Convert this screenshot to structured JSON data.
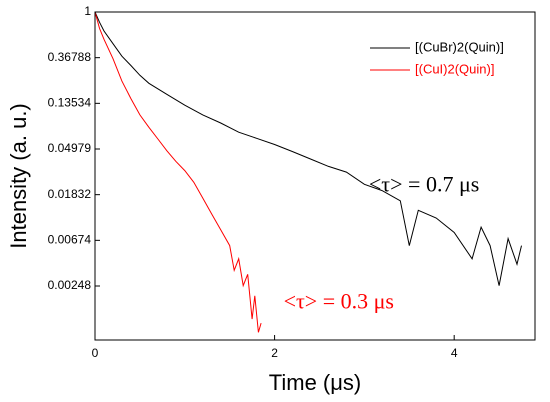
{
  "chart_data": {
    "type": "line",
    "xlabel": "Time (μs)",
    "ylabel": "Intensity (a. u.)",
    "xlim": [
      0,
      4.9
    ],
    "xticks": [
      0,
      2,
      4
    ],
    "ylim": [
      0.00076,
      1
    ],
    "yticks": [
      1,
      0.36788,
      0.13534,
      0.04979,
      0.01832,
      0.00674,
      0.00248
    ],
    "log_y": true,
    "legend": "upper right",
    "series": [
      {
        "name": "[(CuBr)2(Quin)]",
        "color": "#000000",
        "x": [
          0,
          0.05,
          0.1,
          0.2,
          0.3,
          0.4,
          0.5,
          0.6,
          0.8,
          1.0,
          1.2,
          1.4,
          1.6,
          1.8,
          2.0,
          2.2,
          2.4,
          2.6,
          2.8,
          3.0,
          3.2,
          3.4,
          3.5,
          3.6,
          3.8,
          4.0,
          4.2,
          4.3,
          4.4,
          4.5,
          4.6,
          4.7,
          4.75
        ],
        "values": [
          1,
          0.8,
          0.66,
          0.5,
          0.38,
          0.31,
          0.25,
          0.21,
          0.165,
          0.13,
          0.105,
          0.088,
          0.072,
          0.063,
          0.055,
          0.047,
          0.04,
          0.034,
          0.03,
          0.023,
          0.02,
          0.016,
          0.006,
          0.013,
          0.011,
          0.008,
          0.0045,
          0.009,
          0.006,
          0.0025,
          0.007,
          0.004,
          0.006
        ]
      },
      {
        "name": "[(CuI)2(Quin)]",
        "color": "#ff0000",
        "x": [
          0,
          0.05,
          0.1,
          0.2,
          0.3,
          0.4,
          0.5,
          0.6,
          0.7,
          0.8,
          0.9,
          1.0,
          1.1,
          1.2,
          1.3,
          1.4,
          1.5,
          1.55,
          1.6,
          1.65,
          1.7,
          1.75,
          1.78,
          1.82,
          1.85
        ],
        "values": [
          1,
          0.7,
          0.55,
          0.36,
          0.22,
          0.15,
          0.105,
          0.08,
          0.062,
          0.048,
          0.038,
          0.031,
          0.024,
          0.017,
          0.012,
          0.0085,
          0.006,
          0.0035,
          0.0045,
          0.0025,
          0.0032,
          0.0012,
          0.002,
          0.0009,
          0.0011
        ]
      }
    ],
    "annotations": [
      {
        "text": "<τ> = 0.7 μs",
        "color": "#000000",
        "x": 3.05,
        "y": 0.022
      },
      {
        "text": "<τ> = 0.3 μs",
        "color": "#ff0000",
        "x": 2.1,
        "y": 0.0017
      }
    ]
  }
}
